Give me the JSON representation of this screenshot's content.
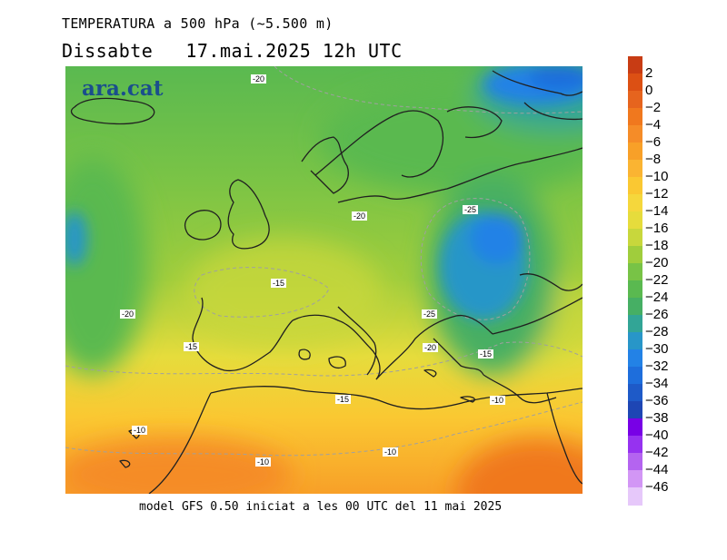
{
  "header": {
    "title": "TEMPERATURA a 500 hPa (~5.500 m)",
    "day": "Dissabte",
    "datetime": "17.mai.2025 12h UTC"
  },
  "logo": {
    "text": "ara.cat"
  },
  "contour_labels": [
    "-20",
    "-20",
    "-25",
    "-15",
    "-20",
    "-25",
    "-15",
    "-20",
    "-15",
    "-15",
    "-10",
    "-10",
    "-10",
    "-10"
  ],
  "footer": {
    "text": "model GFS 0.50 iniciat a les 00 UTC del 11 mai 2025"
  },
  "colorbar": {
    "ticks": [
      "2",
      "0",
      "−2",
      "−4",
      "−6",
      "−8",
      "−10",
      "−12",
      "−14",
      "−16",
      "−18",
      "−20",
      "−22",
      "−24",
      "−26",
      "−28",
      "−30",
      "−32",
      "−34",
      "−36",
      "−38",
      "−40",
      "−42",
      "−44",
      "−46"
    ],
    "colors": [
      "#c83c14",
      "#dc5014",
      "#e6641e",
      "#f0781e",
      "#f58c28",
      "#f8a028",
      "#fab432",
      "#fac832",
      "#f5d73c",
      "#e6dc3c",
      "#c8d73c",
      "#a0cd3c",
      "#78c346",
      "#5ab950",
      "#46af64",
      "#32a596",
      "#2896c8",
      "#2382e6",
      "#1e6edc",
      "#1e5ac8",
      "#1e46b4",
      "#7800e6",
      "#9632f0",
      "#b464f0",
      "#d296f5",
      "#e6c8fa"
    ]
  }
}
